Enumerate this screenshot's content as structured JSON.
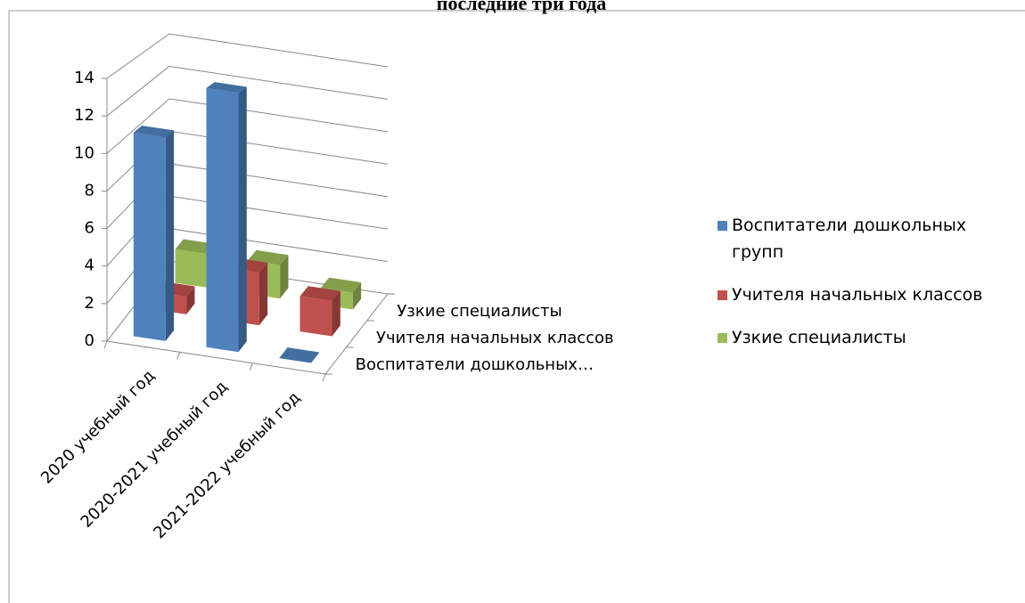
{
  "chart_data": {
    "type": "bar3d",
    "title": "последние три года",
    "categories": [
      "2020 учебный год",
      "2020-2021 учебный год",
      "2021-2022 учебный год"
    ],
    "depth_labels": [
      "Воспитатели дошкольных…",
      "Учителя начальных классов",
      "Узкие специалисты"
    ],
    "series": [
      {
        "name": "Воспитатели дошкольных групп",
        "color": "#4f81bd",
        "values": [
          11,
          14,
          0
        ]
      },
      {
        "name": "Учителя начальных классов",
        "color": "#c0504d",
        "values": [
          1,
          3,
          2
        ]
      },
      {
        "name": "Узкие специалисты",
        "color": "#9bbb59",
        "values": [
          2,
          2,
          1
        ]
      }
    ],
    "ylim": [
      0,
      14
    ],
    "yticks": [
      0,
      2,
      4,
      6,
      8,
      10,
      12,
      14
    ],
    "grid": true,
    "legend": "right"
  }
}
